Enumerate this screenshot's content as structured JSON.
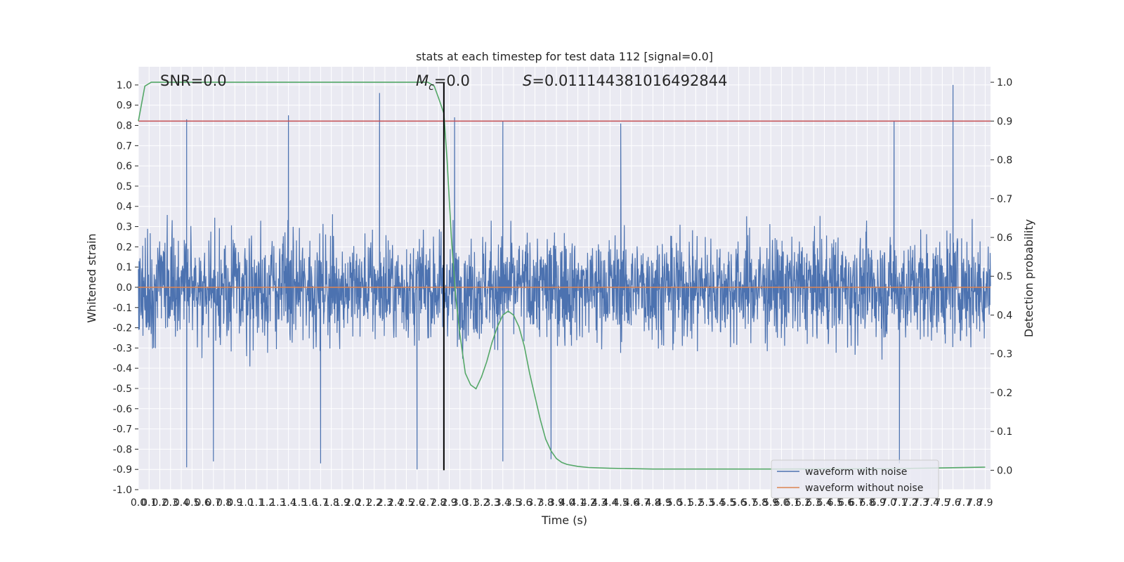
{
  "chart_data": {
    "type": "line",
    "title": "stats at each timestep for test data 112 [signal=0.0]",
    "xlabel": "Time (s)",
    "ylabel": "Whitened strain",
    "y2label": "Detection probability",
    "xlim": [
      0.0,
      7.95
    ],
    "ylim": [
      -1.0,
      1.09
    ],
    "y2lim": [
      -0.05,
      1.04
    ],
    "xticks": [
      "0.0",
      "0.1",
      "0.2",
      "0.3",
      "0.4",
      "0.5",
      "0.6",
      "0.7",
      "0.8",
      "0.9",
      "1.0",
      "1.1",
      "1.2",
      "1.3",
      "1.4",
      "1.5",
      "1.6",
      "1.7",
      "1.8",
      "1.9",
      "2.0",
      "2.1",
      "2.2",
      "2.3",
      "2.4",
      "2.5",
      "2.6",
      "2.7",
      "2.8",
      "2.9",
      "3.0",
      "3.1",
      "3.2",
      "3.3",
      "3.4",
      "3.5",
      "3.6",
      "3.7",
      "3.8",
      "3.9",
      "4.0",
      "4.1",
      "4.2",
      "4.3",
      "4.4",
      "4.5",
      "4.6",
      "4.7",
      "4.8",
      "4.9",
      "5.0",
      "5.1",
      "5.2",
      "5.3",
      "5.4",
      "5.5",
      "5.6",
      "5.7",
      "5.8",
      "5.9",
      "6.0",
      "6.1",
      "6.2",
      "6.3",
      "6.4",
      "6.5",
      "6.6",
      "6.7",
      "6.8",
      "6.9",
      "7.0",
      "7.1",
      "7.2",
      "7.3",
      "7.4",
      "7.5",
      "7.6",
      "7.7",
      "7.8",
      "7.9"
    ],
    "yticks": [
      "1.0",
      "0.9",
      "0.8",
      "0.7",
      "0.6",
      "0.5",
      "0.4",
      "0.3",
      "0.2",
      "0.1",
      "0.0",
      "-0.1",
      "-0.2",
      "-0.3",
      "-0.4",
      "-0.5",
      "-0.6",
      "-0.7",
      "-0.8",
      "-0.9",
      "-1.0"
    ],
    "y2ticks": [
      "1.0",
      "0.9",
      "0.8",
      "0.7",
      "0.6",
      "0.5",
      "0.4",
      "0.3",
      "0.2",
      "0.1",
      "0.0"
    ],
    "annotations": {
      "snr": "SNR=0.0",
      "mc_symbol": "M",
      "mc_sub": "c",
      "mc_value": "=0.0",
      "s_symbol": "S",
      "s_value": "=0.011144381016492844"
    },
    "vline_x": 2.85,
    "threshold": 0.9,
    "grid": true,
    "legend": {
      "placement": "lower-right"
    },
    "series": [
      {
        "name": "waveform with noise",
        "color": "#4c72b0",
        "description": "dense noise spanning roughly -0.9 to 1.0",
        "peaks": [
          [
            0.45,
            0.83
          ],
          [
            1.4,
            0.85
          ],
          [
            2.25,
            0.96
          ],
          [
            2.95,
            0.84
          ],
          [
            3.4,
            0.82
          ],
          [
            4.5,
            0.81
          ],
          [
            7.05,
            0.82
          ],
          [
            7.6,
            1.0
          ]
        ],
        "troughs": [
          [
            0.45,
            -0.89
          ],
          [
            0.7,
            -0.86
          ],
          [
            1.7,
            -0.87
          ],
          [
            2.6,
            -0.9
          ],
          [
            3.4,
            -0.86
          ],
          [
            3.85,
            -0.85
          ],
          [
            7.1,
            -0.87
          ]
        ]
      },
      {
        "name": "waveform without noise",
        "color": "#dd8452",
        "values_constant": 0.0
      },
      {
        "name": "",
        "color": "#55a868",
        "axis": "right",
        "x": [
          0.0,
          0.06,
          0.12,
          0.2,
          0.5,
          1.0,
          1.5,
          2.0,
          2.5,
          2.7,
          2.76,
          2.8,
          2.85,
          2.88,
          2.92,
          2.96,
          3.0,
          3.05,
          3.1,
          3.15,
          3.2,
          3.25,
          3.3,
          3.35,
          3.4,
          3.45,
          3.5,
          3.55,
          3.6,
          3.65,
          3.7,
          3.75,
          3.8,
          3.85,
          3.9,
          3.95,
          4.0,
          4.1,
          4.2,
          4.4,
          4.8,
          5.0,
          6.0,
          7.0,
          7.5,
          7.9
        ],
        "values": [
          0.9,
          0.99,
          1.0,
          1.0,
          1.0,
          1.0,
          1.0,
          1.0,
          1.0,
          1.0,
          0.99,
          0.96,
          0.92,
          0.8,
          0.6,
          0.45,
          0.35,
          0.25,
          0.22,
          0.21,
          0.24,
          0.28,
          0.33,
          0.37,
          0.4,
          0.41,
          0.4,
          0.37,
          0.32,
          0.25,
          0.19,
          0.13,
          0.08,
          0.05,
          0.03,
          0.02,
          0.015,
          0.01,
          0.007,
          0.005,
          0.003,
          0.003,
          0.003,
          0.004,
          0.006,
          0.008
        ]
      },
      {
        "name": "",
        "color": "#c44e52",
        "axis": "right",
        "values_constant": 0.9
      },
      {
        "name": "",
        "color": "#000000",
        "axis": "left",
        "description": "vertical line at x=2.85"
      }
    ]
  }
}
